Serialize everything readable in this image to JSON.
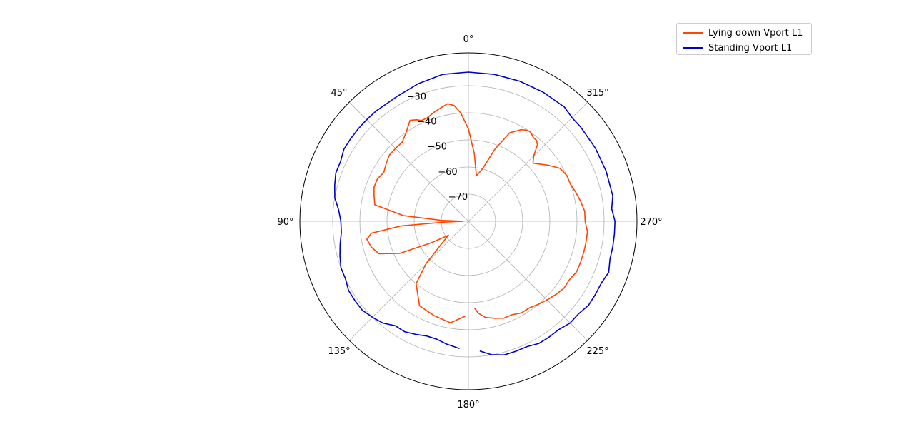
{
  "chart_data": {
    "type": "line",
    "subtype": "polar",
    "theta_direction": "clockwise",
    "theta_zero": "top",
    "theta_ticks": [
      "0°",
      "45°",
      "90°",
      "135°",
      "180°",
      "225°",
      "270°",
      "315°"
    ],
    "theta_tick_values_deg": [
      0,
      45,
      90,
      135,
      180,
      225,
      270,
      315
    ],
    "r_ticks": [
      "−30",
      "−40",
      "−50",
      "−60",
      "−70"
    ],
    "r_tick_values": [
      -30,
      -40,
      -50,
      -60,
      -70
    ],
    "rlim": [
      -80,
      -30
    ],
    "rlim_outer": -30,
    "rlim_extent": -30,
    "grid": true,
    "legend_position": "top-right",
    "colors": {
      "lying": "#ff4500",
      "standing": "#0000cd"
    },
    "series": [
      {
        "name": "Lying down Vport L1",
        "angle_deg": [
          178,
          170,
          160,
          150,
          140,
          135,
          130,
          125,
          120,
          115,
          110,
          105,
          100,
          97,
          94,
          92,
          90,
          88,
          85,
          80,
          75,
          70,
          65,
          60,
          55,
          50,
          45,
          40,
          35,
          30,
          27,
          25,
          22,
          18,
          14,
          10,
          7,
          4,
          0,
          355,
          350,
          345,
          340,
          335,
          330,
          327,
          325,
          322,
          320,
          318,
          315,
          312,
          310,
          305,
          300,
          295,
          290,
          285,
          280,
          275,
          270,
          265,
          260,
          255,
          250,
          245,
          240,
          235,
          230,
          225,
          220,
          215,
          210,
          205,
          200,
          195,
          190,
          186,
          184
        ],
        "values": [
          -45,
          -42,
          -43,
          -44,
          -50,
          -58,
          -67,
          -71,
          -64,
          -52,
          -45,
          -43,
          -42,
          -44,
          -55,
          -71,
          -78,
          -70,
          -56,
          -45,
          -44,
          -43,
          -43,
          -44,
          -43,
          -42,
          -42,
          -42,
          -40,
          -37,
          -38,
          -39,
          -39,
          -38,
          -37,
          -36,
          -37,
          -40,
          -46,
          -55,
          -63,
          -60,
          -52,
          -44,
          -41,
          -40,
          -40,
          -41,
          -41,
          -42,
          -46,
          -48,
          -47,
          -44,
          -41,
          -40,
          -40,
          -39,
          -38,
          -37,
          -37,
          -36,
          -36,
          -36,
          -36,
          -36,
          -37,
          -37,
          -38,
          -39,
          -40,
          -41,
          -41,
          -42,
          -42,
          -43,
          -44,
          -46,
          -48
        ]
      },
      {
        "name": "Standing Vport L1",
        "angle_deg": [
          176,
          170,
          165,
          160,
          155,
          150,
          145,
          140,
          135,
          130,
          125,
          120,
          115,
          110,
          105,
          100,
          95,
          90,
          85,
          80,
          75,
          70,
          65,
          60,
          55,
          50,
          45,
          40,
          30,
          20,
          10,
          0,
          350,
          340,
          330,
          320,
          315,
          310,
          300,
          290,
          280,
          275,
          270,
          265,
          260,
          255,
          250,
          245,
          240,
          235,
          230,
          225,
          220,
          215,
          210,
          205,
          200,
          195,
          190,
          185
        ],
        "values": [
          -33,
          -34,
          -35,
          -35,
          -34,
          -33,
          -33,
          -31,
          -30,
          -29,
          -29,
          -29,
          -30,
          -30,
          -31,
          -32,
          -33,
          -33,
          -32,
          -30,
          -29,
          -28,
          -28,
          -27,
          -27,
          -27,
          -27,
          -27,
          -27,
          -26,
          -25,
          -25,
          -25,
          -25,
          -25,
          -25,
          -26,
          -26,
          -26,
          -26,
          -26,
          -27,
          -26,
          -26,
          -26,
          -26,
          -25,
          -26,
          -26,
          -26,
          -27,
          -27,
          -28,
          -28,
          -28,
          -29,
          -29,
          -29,
          -30,
          -32
        ]
      }
    ]
  }
}
